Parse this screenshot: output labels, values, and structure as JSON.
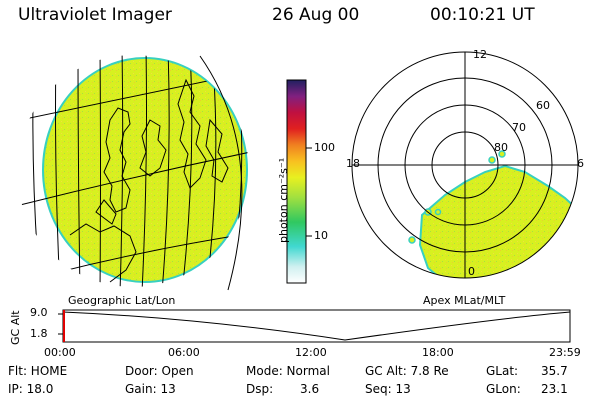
{
  "header": {
    "instrument": "Ultraviolet Imager",
    "date": "26 Aug 00",
    "time": "00:10:21 UT"
  },
  "colorbar": {
    "unit_label": "photon cm⁻²s⁻¹",
    "ticks": [
      "100",
      "10"
    ]
  },
  "geo_panel": {
    "caption": "Geographic Lat/Lon"
  },
  "polar_panel": {
    "caption": "Apex MLat/MLT",
    "mlt_labels": {
      "top": "12",
      "left": "18",
      "right": "6",
      "bottom": "0"
    },
    "lat_labels": [
      "60",
      "70",
      "80"
    ]
  },
  "timeline": {
    "ylabel": "GC Alt",
    "yticks": [
      "9.0",
      "1.8"
    ],
    "xticks": [
      "00:00",
      "06:00",
      "12:00",
      "18:00",
      "23:59"
    ]
  },
  "status": {
    "flt": "Flt: HOME",
    "ip": "IP: 18.0",
    "door": "Door: Open",
    "gain": "Gain: 13",
    "mode": "Mode: Normal",
    "dsp_label": "Dsp:",
    "dsp_value": "3.6",
    "gcalt": "GC Alt: 7.8 Re",
    "seq": "Seq: 13",
    "glat_label": "GLat:",
    "glat_value": "35.7",
    "glon_label": "GLon:",
    "glon_value": "23.1"
  },
  "colors": {
    "emission": "#d8f020",
    "limb": "#38d0c0",
    "marker": "#e00000"
  }
}
